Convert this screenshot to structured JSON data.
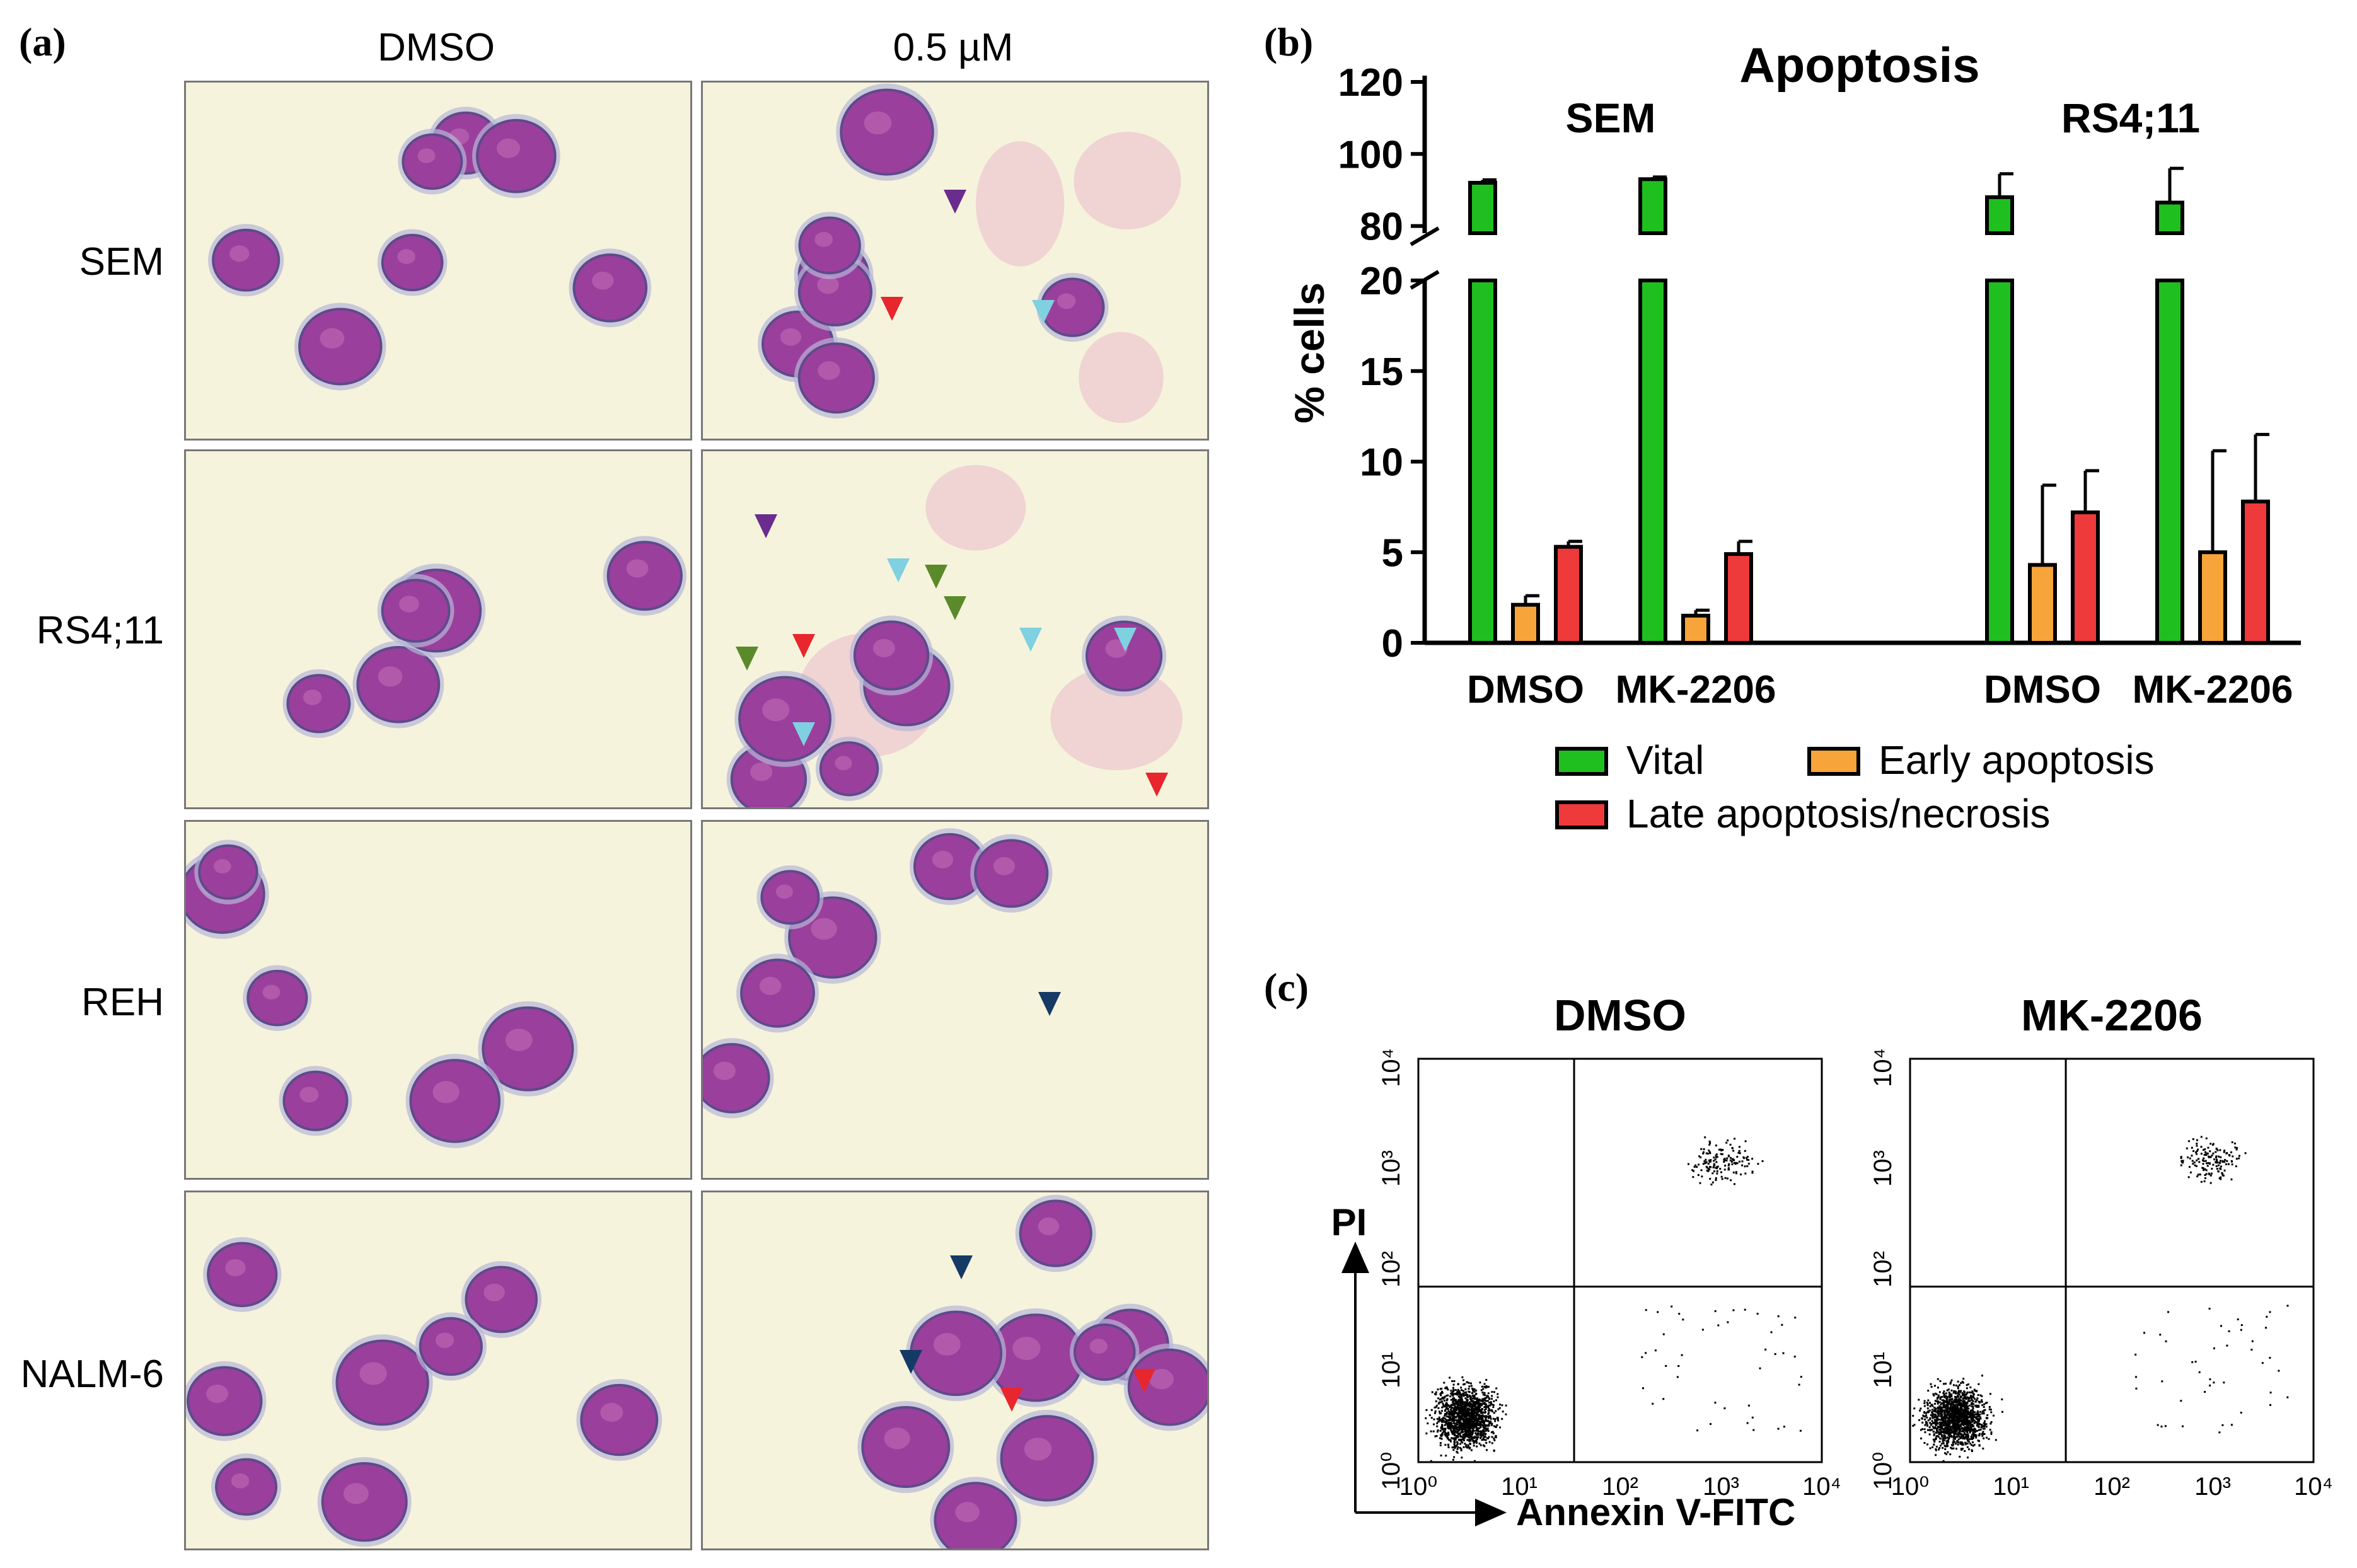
{
  "panel_a": {
    "letter": "(a)",
    "columns": [
      "DMSO",
      "0.5 µM"
    ],
    "rows": [
      "SEM",
      "RS4;11",
      "REH",
      "NALM-6"
    ],
    "colors": {
      "background": "#f7f4dc",
      "cell": "#9b3f9c",
      "cell_border": "#5e4a8a",
      "smear": "#e7b0c8"
    },
    "arrow_colors": {
      "red": "#e8262d",
      "purple": "#6a2c8e",
      "light_blue": "#7fd0e0",
      "green": "#5b8a2a",
      "navy": "#163a66"
    }
  },
  "panel_b": {
    "letter": "(b)"
  },
  "panel_c": {
    "letter": "(c)",
    "plots": [
      "DMSO",
      "MK-2206"
    ],
    "y_label": "PI",
    "x_label": "Annexin V-FITC"
  },
  "chart_data": [
    {
      "type": "bar",
      "title": "Apoptosis",
      "ylabel": "% cells",
      "groups": [
        "SEM",
        "RS4;11"
      ],
      "categories": [
        "DMSO",
        "MK-2206",
        "DMSO",
        "MK-2206"
      ],
      "category_group": [
        "SEM",
        "SEM",
        "RS4;11",
        "RS4;11"
      ],
      "y_axis": {
        "broken": true,
        "lower_range": [
          0,
          20
        ],
        "upper_range": [
          78,
          120
        ],
        "lower_ticks": [
          0,
          5,
          10,
          15,
          20
        ],
        "upper_ticks": [
          80,
          100,
          120
        ]
      },
      "series": [
        {
          "name": "Vital",
          "color": "#1fbf1f",
          "values": [
            92,
            93,
            88,
            86.5
          ],
          "errors": [
            0.8,
            0.6,
            6.5,
            9.5
          ]
        },
        {
          "name": "Early apoptosis",
          "color": "#f7a43a",
          "values": [
            2.1,
            1.5,
            4.3,
            5.0
          ],
          "errors": [
            0.5,
            0.3,
            4.4,
            5.6
          ]
        },
        {
          "name": "Late apoptosis/necrosis",
          "color": "#ee3a3a",
          "values": [
            5.3,
            4.9,
            7.2,
            7.8
          ],
          "errors": [
            0.3,
            0.7,
            2.3,
            3.7
          ]
        }
      ],
      "legend_placement": "bottom"
    },
    {
      "type": "scatter",
      "title": "DMSO",
      "xlabel": "Annexin V-FITC",
      "ylabel": "PI",
      "scale": "log",
      "x_ticks": [
        "10⁰",
        "10¹",
        "10²",
        "10³",
        "10⁴"
      ],
      "y_ticks": [
        "10⁰",
        "10¹",
        "10²",
        "10³",
        "10⁴"
      ],
      "gate": {
        "x": 35,
        "y": 55
      }
    },
    {
      "type": "scatter",
      "title": "MK-2206",
      "xlabel": "Annexin V-FITC",
      "ylabel": "PI",
      "scale": "log",
      "x_ticks": [
        "10⁰",
        "10¹",
        "10²",
        "10³",
        "10⁴"
      ],
      "y_ticks": [
        "10⁰",
        "10¹",
        "10²",
        "10³",
        "10⁴"
      ],
      "gate": {
        "x": 35,
        "y": 55
      }
    }
  ]
}
